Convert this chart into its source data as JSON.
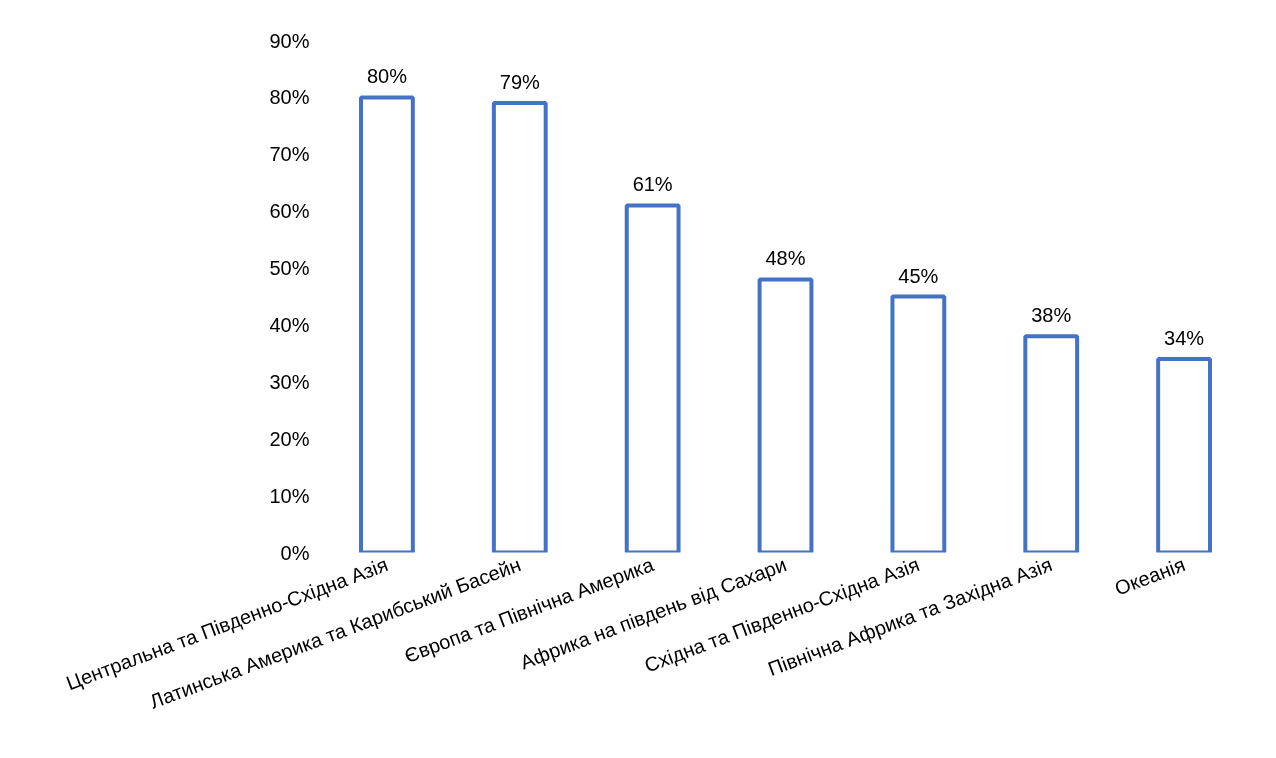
{
  "chart_data": {
    "type": "bar",
    "categories": [
      "Центральна та Південно-Східна Азія",
      "Латинська Америка та Карибський Басейн",
      "Європа та Північна Америка",
      "Африка на південь від Сахари",
      "Східна та Південно-Східна Азія",
      "Північна Африка та Західна Азія",
      "Океанія"
    ],
    "values": [
      80,
      79,
      61,
      48,
      45,
      38,
      34
    ],
    "value_labels": [
      "80%",
      "79%",
      "61%",
      "48%",
      "45%",
      "38%",
      "34%"
    ],
    "color": "#4472c4",
    "ylim": [
      0,
      90
    ],
    "yticks": [
      {
        "value": 0,
        "label": "0%"
      },
      {
        "value": 10,
        "label": "10%"
      },
      {
        "value": 20,
        "label": "20%"
      },
      {
        "value": 30,
        "label": "30%"
      },
      {
        "value": 40,
        "label": "40%"
      },
      {
        "value": 50,
        "label": "50%"
      },
      {
        "value": 60,
        "label": "60%"
      },
      {
        "value": 70,
        "label": "70%"
      },
      {
        "value": 80,
        "label": "80%"
      },
      {
        "value": 90,
        "label": "90%"
      }
    ],
    "grid": false
  }
}
